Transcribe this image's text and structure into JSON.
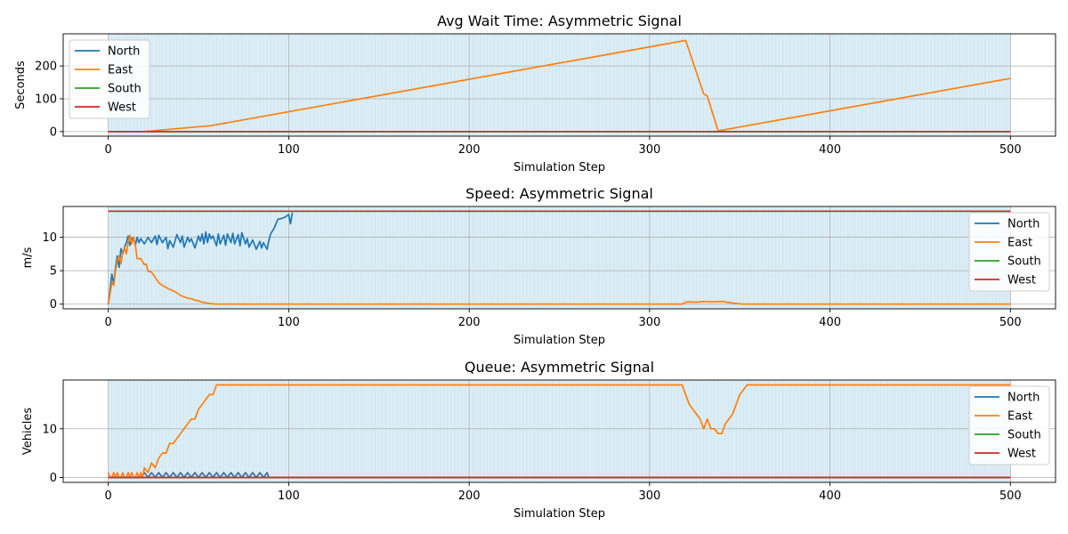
{
  "chart_data": [
    {
      "type": "line",
      "title": "Avg Wait Time: Asymmetric Signal",
      "xlabel": "Simulation Step",
      "ylabel": "Seconds",
      "xlim": [
        -25,
        525
      ],
      "ylim": [
        -14,
        298
      ],
      "xticks": [
        0,
        100,
        200,
        300,
        400,
        500
      ],
      "yticks": [
        0,
        100,
        200
      ],
      "grid": true,
      "legend": "upper left",
      "shaded_xrange": [
        0,
        500
      ],
      "series": [
        {
          "name": "North",
          "color": "#1f77b4",
          "x": [
            0,
            500
          ],
          "y": [
            0,
            0
          ]
        },
        {
          "name": "East",
          "color": "#ff7f0e",
          "x": [
            0,
            20,
            57,
            320,
            330,
            332,
            338,
            500
          ],
          "y": [
            0,
            0,
            18,
            278,
            115,
            108,
            2,
            162
          ]
        },
        {
          "name": "South",
          "color": "#2ca02c",
          "x": [
            0,
            500
          ],
          "y": [
            0,
            0
          ]
        },
        {
          "name": "West",
          "color": "#d62728",
          "x": [
            0,
            500
          ],
          "y": [
            0,
            0
          ]
        }
      ]
    },
    {
      "type": "line",
      "title": "Speed: Asymmetric Signal",
      "xlabel": "Simulation Step",
      "ylabel": "m/s",
      "xlim": [
        -25,
        525
      ],
      "ylim": [
        -0.7,
        14.6
      ],
      "xticks": [
        0,
        100,
        200,
        300,
        400,
        500
      ],
      "yticks": [
        0,
        5,
        10
      ],
      "grid": true,
      "legend": "right",
      "shaded_xrange": [
        0,
        500
      ],
      "series": [
        {
          "name": "North",
          "color": "#1f77b4",
          "x": [
            0,
            2,
            3,
            4,
            5,
            6,
            7,
            8,
            9,
            10,
            11,
            12,
            13,
            14,
            15,
            16,
            17,
            18,
            20,
            22,
            24,
            26,
            27,
            28,
            30,
            32,
            33,
            34,
            36,
            38,
            40,
            41,
            42,
            44,
            45,
            46,
            48,
            50,
            51,
            52,
            53,
            54,
            55,
            56,
            57,
            58,
            60,
            61,
            62,
            64,
            65,
            66,
            68,
            69,
            70,
            72,
            73,
            74,
            76,
            77,
            78,
            80,
            82,
            84,
            85,
            86,
            88,
            89,
            90,
            92,
            94,
            96,
            98,
            100,
            101,
            102
          ],
          "y": [
            0,
            4.5,
            3,
            5.5,
            7.2,
            5.5,
            8.3,
            7.5,
            8.5,
            9.2,
            10.2,
            8.8,
            9.8,
            10,
            8.8,
            10,
            9.2,
            9.8,
            9,
            10,
            9.2,
            10.2,
            8.9,
            10.3,
            9.2,
            10,
            8.3,
            9.5,
            8.5,
            10.4,
            9.2,
            10.2,
            8.5,
            10,
            9.3,
            9.8,
            8.4,
            10.2,
            9.4,
            10.5,
            9,
            10.8,
            9.2,
            10.5,
            9.8,
            10.2,
            8.7,
            10.5,
            9,
            10.3,
            8.8,
            10.5,
            9.2,
            10.6,
            9,
            10.4,
            8.7,
            10.7,
            9,
            9.8,
            8.5,
            9.6,
            8.2,
            9.4,
            8.4,
            9.2,
            8.2,
            9.5,
            10.5,
            11.4,
            12.7,
            12.8,
            13,
            13.4,
            12,
            13.7
          ]
        },
        {
          "name": "East",
          "color": "#ff7f0e",
          "x": [
            0,
            2,
            3,
            4,
            5,
            6,
            7,
            8,
            9,
            10,
            11,
            12,
            13,
            14,
            15,
            16,
            18,
            20,
            21,
            22,
            24,
            26,
            28,
            30,
            32,
            34,
            36,
            38,
            40,
            42,
            44,
            46,
            48,
            50,
            52,
            54,
            56,
            58,
            60,
            100,
            200,
            318,
            320,
            322,
            326,
            330,
            335,
            340,
            344,
            348,
            352,
            400,
            500
          ],
          "y": [
            0,
            3.2,
            2.8,
            5,
            6.5,
            7.2,
            6,
            7.8,
            8.5,
            7.5,
            9.2,
            10.3,
            9,
            10,
            8.8,
            6.8,
            6.8,
            5.9,
            6,
            4.9,
            4.8,
            4,
            3.2,
            2.8,
            2.5,
            2.2,
            2,
            1.7,
            1.3,
            1.1,
            0.9,
            0.8,
            0.6,
            0.5,
            0.3,
            0.2,
            0.1,
            0.05,
            0,
            0,
            0,
            0,
            0.3,
            0.35,
            0.3,
            0.4,
            0.35,
            0.4,
            0.25,
            0.1,
            0,
            0,
            0
          ]
        },
        {
          "name": "South",
          "color": "#2ca02c",
          "x": [
            0,
            500
          ],
          "y": [
            13.9,
            13.9
          ]
        },
        {
          "name": "West",
          "color": "#d62728",
          "x": [
            0,
            500
          ],
          "y": [
            13.9,
            13.9
          ]
        }
      ]
    },
    {
      "type": "line",
      "title": "Queue: Asymmetric Signal",
      "xlabel": "Simulation Step",
      "ylabel": "Vehicles",
      "xlim": [
        -25,
        525
      ],
      "ylim": [
        -1,
        20
      ],
      "xticks": [
        0,
        100,
        200,
        300,
        400,
        500
      ],
      "yticks": [
        0,
        10
      ],
      "grid": true,
      "legend": "right",
      "shaded_xrange": [
        0,
        500
      ],
      "series": [
        {
          "name": "North",
          "color": "#1f77b4",
          "x": [
            0,
            18,
            20,
            22,
            24,
            26,
            28,
            30,
            32,
            34,
            36,
            38,
            40,
            42,
            44,
            46,
            48,
            50,
            52,
            54,
            56,
            58,
            60,
            62,
            64,
            66,
            68,
            70,
            72,
            74,
            76,
            78,
            80,
            82,
            84,
            86,
            88,
            89,
            500
          ],
          "y": [
            0,
            0,
            1,
            0,
            1,
            0,
            1,
            0,
            1,
            0,
            1,
            0,
            1,
            0,
            1,
            0,
            1,
            0,
            1,
            0,
            1,
            0,
            1,
            0,
            1,
            0,
            1,
            0,
            1,
            0,
            1,
            0,
            1,
            0,
            1,
            0,
            1,
            0,
            0
          ]
        },
        {
          "name": "East",
          "color": "#ff7f0e",
          "x": [
            0,
            1,
            2,
            3,
            4,
            5,
            6,
            7,
            8,
            9,
            10,
            11,
            12,
            13,
            14,
            15,
            16,
            17,
            18,
            19,
            20,
            22,
            24,
            26,
            28,
            30,
            32,
            34,
            36,
            38,
            40,
            42,
            44,
            46,
            48,
            50,
            52,
            54,
            56,
            58,
            60,
            100,
            200,
            318,
            320,
            322,
            324,
            326,
            328,
            330,
            332,
            334,
            336,
            338,
            340,
            342,
            344,
            346,
            348,
            350,
            352,
            354,
            400,
            500
          ],
          "y": [
            1,
            0,
            0,
            1,
            0,
            1,
            0,
            0,
            1,
            0,
            0,
            1,
            0,
            1,
            0,
            0,
            1,
            0,
            1,
            0,
            2,
            1,
            3,
            2,
            4,
            5,
            5,
            7,
            7,
            8,
            9,
            10,
            11,
            12,
            12,
            14,
            15,
            16,
            17,
            17,
            19,
            19,
            19,
            19,
            17,
            15,
            14,
            13,
            12,
            10,
            12,
            10,
            10,
            9,
            9,
            11,
            12,
            13,
            15,
            17,
            18,
            19,
            19,
            19
          ]
        },
        {
          "name": "South",
          "color": "#2ca02c",
          "x": [
            0,
            500
          ],
          "y": [
            0,
            0
          ]
        },
        {
          "name": "West",
          "color": "#d62728",
          "x": [
            0,
            500
          ],
          "y": [
            0,
            0
          ]
        }
      ]
    }
  ]
}
